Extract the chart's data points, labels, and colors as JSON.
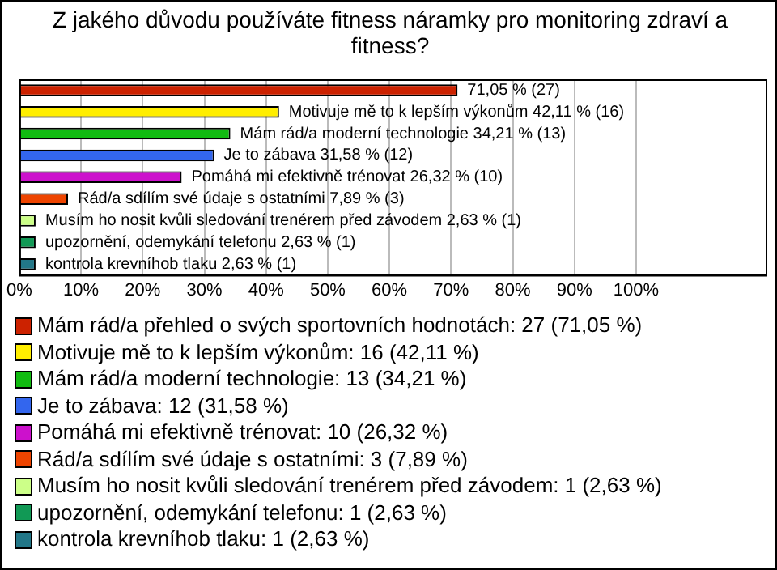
{
  "chart_data": {
    "type": "bar",
    "orientation": "horizontal",
    "title": "Z jakého důvodu používáte fitness náramky pro monitoring zdraví a fitness?",
    "categories": [
      null,
      null,
      null,
      null,
      null,
      null,
      null,
      null,
      null
    ],
    "series": [
      {
        "name": "Mám rád/a přehled o svých sportovních hodnotách: 27 (71,05 %)",
        "color": "#cc2200",
        "values": [
          71.05,
          null,
          null,
          null,
          null,
          null,
          null,
          null,
          null
        ],
        "value_labels": [
          "71,05 % (27)",
          null,
          null,
          null,
          null,
          null,
          null,
          null,
          null
        ]
      },
      {
        "name": "Motivuje mě to k lepším výkonům: 16 (42,11 %)",
        "color": "#ffee00",
        "values": [
          null,
          42.11,
          null,
          null,
          null,
          null,
          null,
          null,
          null
        ],
        "value_labels": [
          null,
          "Motivuje mě to k lepším výkonům 42,11 % (16)",
          null,
          null,
          null,
          null,
          null,
          null,
          null
        ]
      },
      {
        "name": "Mám rád/a moderní technologie: 13 (34,21 %)",
        "color": "#11bb11",
        "values": [
          null,
          null,
          34.21,
          null,
          null,
          null,
          null,
          null,
          null
        ],
        "value_labels": [
          null,
          null,
          "Mám rád/a moderní technologie 34,21 % (13)",
          null,
          null,
          null,
          null,
          null,
          null
        ]
      },
      {
        "name": "Je to zábava: 12 (31,58 %)",
        "color": "#3366ee",
        "values": [
          null,
          null,
          null,
          31.58,
          null,
          null,
          null,
          null,
          null
        ],
        "value_labels": [
          null,
          null,
          null,
          "Je to zábava 31,58 % (12)",
          null,
          null,
          null,
          null,
          null
        ]
      },
      {
        "name": "Pomáhá mi efektivně trénovat: 10 (26,32 %)",
        "color": "#cc11cc",
        "values": [
          null,
          null,
          null,
          null,
          26.32,
          null,
          null,
          null,
          null
        ],
        "value_labels": [
          null,
          null,
          null,
          null,
          "Pomáhá mi efektivně trénovat 26,32 % (10)",
          null,
          null,
          null,
          null
        ]
      },
      {
        "name": "Rád/a sdílím své údaje s ostatními: 3 (7,89 %)",
        "color": "#ee4400",
        "values": [
          null,
          null,
          null,
          null,
          null,
          7.89,
          null,
          null,
          null
        ],
        "value_labels": [
          null,
          null,
          null,
          null,
          null,
          "Rád/a sdílím své údaje s ostatními 7,89 % (3)",
          null,
          null,
          null
        ]
      },
      {
        "name": "Musím ho nosit kvůli sledování trenérem před závodem: 1 (2,63 %)",
        "color": "#ccff88",
        "values": [
          null,
          null,
          null,
          null,
          null,
          null,
          2.63,
          null,
          null
        ],
        "value_labels": [
          null,
          null,
          null,
          null,
          null,
          null,
          "Musím ho nosit kvůli sledování trenérem před závodem 2,63 % (1)",
          null,
          null
        ]
      },
      {
        "name": "upozornění, odemykání telefonu: 1 (2,63 %)",
        "color": "#119955",
        "values": [
          null,
          null,
          null,
          null,
          null,
          null,
          null,
          2.63,
          null
        ],
        "value_labels": [
          null,
          null,
          null,
          null,
          null,
          null,
          null,
          "upozornění, odemykání telefonu 2,63 % (1)",
          null
        ]
      },
      {
        "name": "kontrola krevníhob tlaku: 1 (2,63 %)",
        "color": "#227788",
        "values": [
          null,
          null,
          null,
          null,
          null,
          null,
          null,
          null,
          2.63
        ],
        "value_labels": [
          null,
          null,
          null,
          null,
          null,
          null,
          null,
          null,
          "kontrola krevníhob tlaku 2,63 % (1)"
        ]
      }
    ],
    "xlim": [
      0,
      121
    ],
    "xticks": [
      {
        "value": 0,
        "label": "0%"
      },
      {
        "value": 10,
        "label": "10%"
      },
      {
        "value": 20,
        "label": "20%"
      },
      {
        "value": 30,
        "label": "30%"
      },
      {
        "value": 40,
        "label": "40%"
      },
      {
        "value": 50,
        "label": "50%"
      },
      {
        "value": 60,
        "label": "60%"
      },
      {
        "value": 70,
        "label": "70%"
      },
      {
        "value": 80,
        "label": "80%"
      },
      {
        "value": 90,
        "label": "90%"
      },
      {
        "value": 100,
        "label": "100%"
      }
    ],
    "grid": "x",
    "legend": "bottom"
  }
}
